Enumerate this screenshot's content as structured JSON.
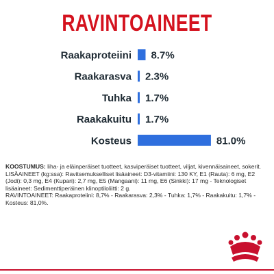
{
  "title": "RAVINTOAINEET",
  "chart_data": {
    "type": "bar",
    "orientation": "horizontal",
    "categories": [
      "Raakaproteiini",
      "Raakarasva",
      "Tuhka",
      "Raakakuitu",
      "Kosteus"
    ],
    "values": [
      8.7,
      2.3,
      1.7,
      1.7,
      81.0
    ],
    "value_labels": [
      "8.7%",
      "2.3%",
      "1.7%",
      "1.7%",
      "81.0%"
    ],
    "unit": "%",
    "xlim": [
      0,
      100
    ],
    "grid": false,
    "legend": "none",
    "bar_color": "#2f6fde"
  },
  "notes": {
    "koostumus_label": "KOOSTUMUS:",
    "koostumus_text": " liha- ja eläinperäiset tuotteet, kasviperäiset tuotteet, viljat, kivennäisaineet, sokerit.",
    "lisaaineet_text": "LISÄAINEET (kg:ssa): Ravitsemukselliset lisäaineet: D3-vitamiini: 130 KY, E1 (Rauta): 6 mg, E2 (Jodi): 0,3 mg, E4 (Kupari): 2,7 mg, E5 (Mangaani): 11 mg, E6 (Sinkki): 17 mg - Teknologiset lisäaineet: Sedimenttiperäinen klinoptiloliitti: 2 g.",
    "ravintoaineet_text": "RAVINTOAINEET: Raakaproteiini: 8,7% - Raakarasva: 2,3% - Tuhka: 1,7% - Raakakuitu: 1,7% - Kosteus: 81,0%."
  },
  "colors": {
    "title": "#d4121e",
    "bar": "#2f6fde",
    "accent": "#c8102e"
  },
  "icons": {
    "logo": "royal-crown-logo"
  }
}
